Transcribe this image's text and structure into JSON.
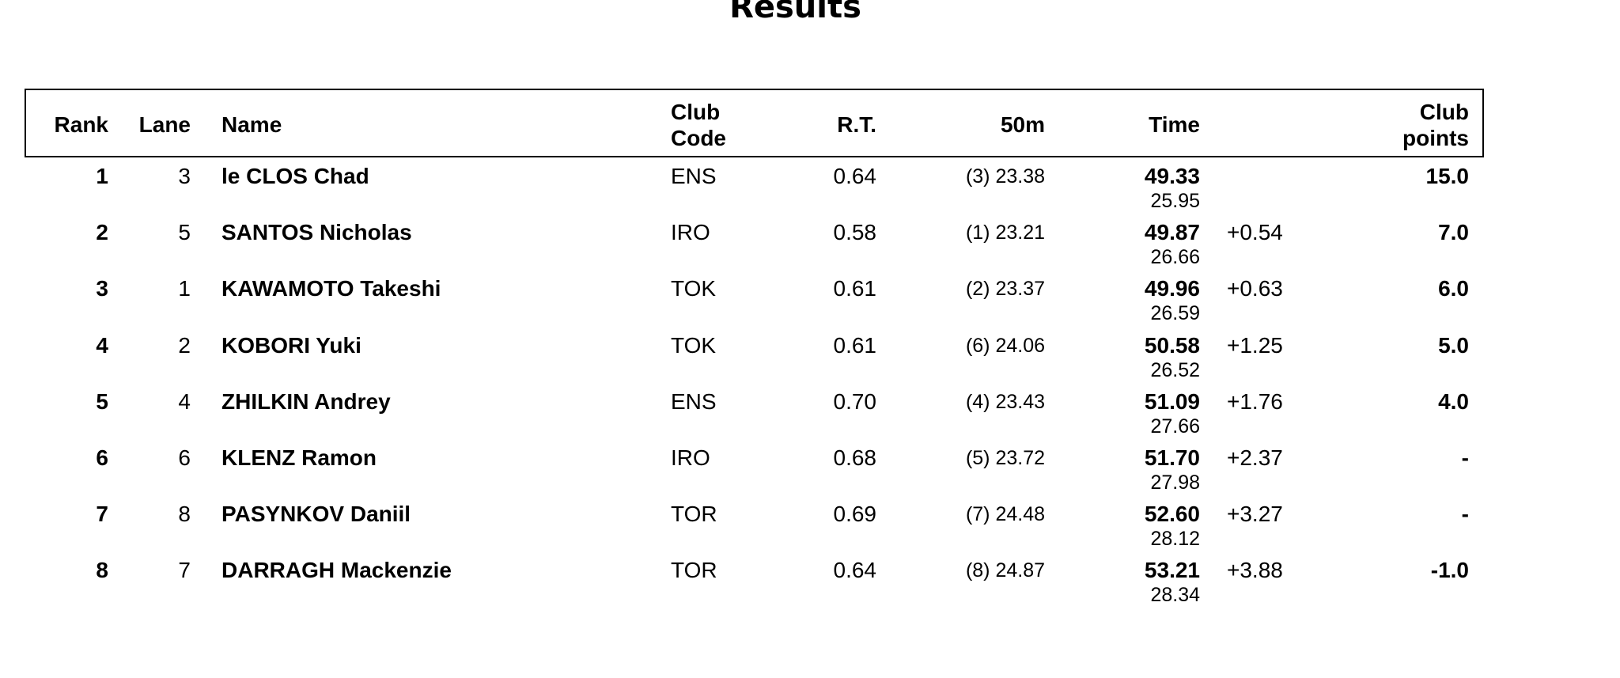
{
  "title": "Results",
  "headers": {
    "rank": "Rank",
    "lane": "Lane",
    "name": "Name",
    "club_code_line1": "Club",
    "club_code_line2": "Code",
    "rt": "R.T.",
    "split50": "50m",
    "time": "Time",
    "club_points_line1": "Club",
    "club_points_line2": "points"
  },
  "rows": [
    {
      "rank": "1",
      "lane": "3",
      "name": "le CLOS Chad",
      "club": "ENS",
      "rt": "0.64",
      "split50": "(3) 23.38",
      "time": "49.33",
      "split2": "25.95",
      "diff": "",
      "points": "15.0"
    },
    {
      "rank": "2",
      "lane": "5",
      "name": "SANTOS Nicholas",
      "club": "IRO",
      "rt": "0.58",
      "split50": "(1) 23.21",
      "time": "49.87",
      "split2": "26.66",
      "diff": "+0.54",
      "points": "7.0"
    },
    {
      "rank": "3",
      "lane": "1",
      "name": "KAWAMOTO Takeshi",
      "club": "TOK",
      "rt": "0.61",
      "split50": "(2) 23.37",
      "time": "49.96",
      "split2": "26.59",
      "diff": "+0.63",
      "points": "6.0"
    },
    {
      "rank": "4",
      "lane": "2",
      "name": "KOBORI Yuki",
      "club": "TOK",
      "rt": "0.61",
      "split50": "(6) 24.06",
      "time": "50.58",
      "split2": "26.52",
      "diff": "+1.25",
      "points": "5.0"
    },
    {
      "rank": "5",
      "lane": "4",
      "name": "ZHILKIN Andrey",
      "club": "ENS",
      "rt": "0.70",
      "split50": "(4) 23.43",
      "time": "51.09",
      "split2": "27.66",
      "diff": "+1.76",
      "points": "4.0"
    },
    {
      "rank": "6",
      "lane": "6",
      "name": "KLENZ Ramon",
      "club": "IRO",
      "rt": "0.68",
      "split50": "(5) 23.72",
      "time": "51.70",
      "split2": "27.98",
      "diff": "+2.37",
      "points": "-"
    },
    {
      "rank": "7",
      "lane": "8",
      "name": "PASYNKOV Daniil",
      "club": "TOR",
      "rt": "0.69",
      "split50": "(7) 24.48",
      "time": "52.60",
      "split2": "28.12",
      "diff": "+3.27",
      "points": "-"
    },
    {
      "rank": "8",
      "lane": "7",
      "name": "DARRAGH Mackenzie",
      "club": "TOR",
      "rt": "0.64",
      "split50": "(8) 24.87",
      "time": "53.21",
      "split2": "28.34",
      "diff": "+3.88",
      "points": "-1.0"
    }
  ]
}
